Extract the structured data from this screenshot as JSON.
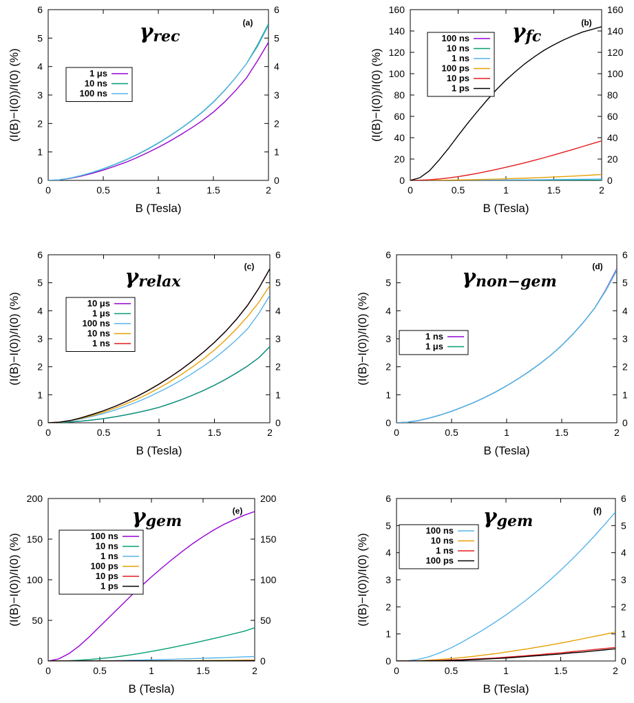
{
  "chart_data": [
    {
      "type": "line",
      "panel_label": "(a)",
      "title": "γrec",
      "title_greek": "γ",
      "title_sub": "rec",
      "xlabel": "B (Tesla)",
      "ylabel": "(I(B)−I(0))/I(0) (%)",
      "xlim": [
        0,
        2
      ],
      "ylim": [
        0,
        6
      ],
      "xticks": [
        "0",
        "0.5",
        "1",
        "1.5",
        "2"
      ],
      "yticks": [
        "0",
        "1",
        "2",
        "3",
        "4",
        "5",
        "6"
      ],
      "grid": false,
      "legend_position": "left",
      "x": [
        0,
        0.1,
        0.2,
        0.3,
        0.4,
        0.5,
        0.6,
        0.7,
        0.8,
        0.9,
        1.0,
        1.1,
        1.2,
        1.3,
        1.4,
        1.5,
        1.6,
        1.7,
        1.8,
        1.9,
        2.0
      ],
      "series": [
        {
          "name": "1 μs",
          "color": "#9400d3",
          "values": [
            0,
            0.02,
            0.07,
            0.15,
            0.25,
            0.36,
            0.49,
            0.63,
            0.79,
            0.97,
            1.16,
            1.37,
            1.6,
            1.84,
            2.1,
            2.4,
            2.75,
            3.15,
            3.6,
            4.2,
            4.85
          ]
        },
        {
          "name": "10 ns",
          "color": "#009e73",
          "values": [
            0,
            0.02,
            0.08,
            0.17,
            0.28,
            0.4,
            0.55,
            0.71,
            0.89,
            1.09,
            1.31,
            1.55,
            1.81,
            2.09,
            2.4,
            2.75,
            3.15,
            3.6,
            4.1,
            4.75,
            5.5
          ]
        },
        {
          "name": "100 ns",
          "color": "#56b4e9",
          "values": [
            0,
            0.02,
            0.08,
            0.17,
            0.28,
            0.41,
            0.56,
            0.72,
            0.9,
            1.1,
            1.32,
            1.56,
            1.82,
            2.1,
            2.41,
            2.76,
            3.16,
            3.6,
            4.1,
            4.7,
            5.45
          ]
        }
      ]
    },
    {
      "type": "line",
      "panel_label": "(b)",
      "title": "γfc",
      "title_greek": "γ",
      "title_sub": "fc",
      "xlabel": "B (Tesla)",
      "ylabel": "(I(B)−I(0))/I(0) (%)",
      "xlim": [
        0,
        2
      ],
      "ylim": [
        0,
        160
      ],
      "xticks": [
        "0",
        "0.5",
        "1",
        "1.5",
        "2"
      ],
      "yticks": [
        "0",
        "20",
        "40",
        "60",
        "80",
        "100",
        "120",
        "140",
        "160"
      ],
      "grid": false,
      "legend_position": "top-left",
      "x": [
        0,
        0.1,
        0.2,
        0.3,
        0.4,
        0.5,
        0.6,
        0.7,
        0.8,
        0.9,
        1.0,
        1.1,
        1.2,
        1.3,
        1.4,
        1.5,
        1.6,
        1.7,
        1.8,
        1.9,
        2.0
      ],
      "series": [
        {
          "name": "100 ns",
          "color": "#9400d3",
          "values": [
            0,
            0,
            0,
            0,
            0,
            0,
            0,
            0,
            0,
            0,
            0,
            0,
            0,
            0,
            0,
            0,
            0,
            0,
            0,
            0,
            0
          ]
        },
        {
          "name": "10 ns",
          "color": "#009e73",
          "values": [
            0,
            0,
            0,
            0,
            0,
            0,
            0,
            0.1,
            0.1,
            0.1,
            0.1,
            0.1,
            0.1,
            0.2,
            0.2,
            0.2,
            0.2,
            0.2,
            0.2,
            0.2,
            0.2
          ]
        },
        {
          "name": "1 ns",
          "color": "#56b4e9",
          "values": [
            0,
            0,
            0,
            0.1,
            0.1,
            0.1,
            0.2,
            0.2,
            0.3,
            0.3,
            0.4,
            0.5,
            0.5,
            0.6,
            0.7,
            0.8,
            0.9,
            1.0,
            1.1,
            1.2,
            1.3
          ]
        },
        {
          "name": "100 ps",
          "color": "#e69f00",
          "values": [
            0,
            0,
            0.1,
            0.2,
            0.3,
            0.4,
            0.6,
            0.8,
            1.0,
            1.2,
            1.5,
            1.8,
            2.1,
            2.4,
            2.8,
            3.2,
            3.6,
            4.0,
            4.5,
            5.0,
            5.5
          ]
        },
        {
          "name": "10 ps",
          "color": "#e41a1c",
          "values": [
            0,
            0.2,
            0.6,
            1.3,
            2.3,
            3.5,
            5.0,
            6.6,
            8.4,
            10.3,
            12.3,
            14.4,
            16.6,
            18.9,
            21.3,
            23.8,
            26.4,
            29.0,
            31.7,
            34.4,
            37.0
          ]
        },
        {
          "name": "1 ps",
          "color": "#000000",
          "values": [
            0,
            2.5,
            9,
            19,
            30,
            42,
            53.5,
            64.5,
            75,
            85,
            94,
            102,
            109.5,
            116,
            122,
            127,
            131.5,
            135.5,
            139,
            141.5,
            144
          ]
        }
      ]
    },
    {
      "type": "line",
      "panel_label": "(c)",
      "title": "γrelax",
      "title_greek": "γ",
      "title_sub": "relax",
      "xlabel": "B (Tesla)",
      "ylabel": "(I(B)−I(0))/I(0) (%)",
      "xlim": [
        0,
        2
      ],
      "ylim": [
        0,
        6
      ],
      "xticks": [
        "0",
        "0.5",
        "1",
        "1.5",
        "2"
      ],
      "yticks": [
        "0",
        "1",
        "2",
        "3",
        "4",
        "5",
        "6"
      ],
      "grid": false,
      "legend_position": "left",
      "x": [
        0,
        0.1,
        0.2,
        0.3,
        0.4,
        0.5,
        0.6,
        0.7,
        0.8,
        0.9,
        1.0,
        1.1,
        1.2,
        1.3,
        1.4,
        1.5,
        1.6,
        1.7,
        1.8,
        1.9,
        2.0
      ],
      "series": [
        {
          "name": "10 μs",
          "color": "#9400d3",
          "values": [
            0,
            0.01,
            0.03,
            0.06,
            0.1,
            0.15,
            0.21,
            0.28,
            0.36,
            0.45,
            0.55,
            0.68,
            0.82,
            0.98,
            1.15,
            1.34,
            1.55,
            1.78,
            2.03,
            2.32,
            2.72
          ]
        },
        {
          "name": "1 μs",
          "color": "#009e73",
          "values": [
            0,
            0.01,
            0.03,
            0.06,
            0.1,
            0.15,
            0.21,
            0.28,
            0.36,
            0.45,
            0.55,
            0.68,
            0.82,
            0.98,
            1.15,
            1.34,
            1.55,
            1.78,
            2.03,
            2.32,
            2.72
          ]
        },
        {
          "name": "100 ns",
          "color": "#56b4e9",
          "values": [
            0,
            0.02,
            0.07,
            0.14,
            0.23,
            0.33,
            0.45,
            0.59,
            0.74,
            0.91,
            1.1,
            1.3,
            1.52,
            1.76,
            2.02,
            2.3,
            2.62,
            2.97,
            3.36,
            3.9,
            4.55
          ]
        },
        {
          "name": "10 ns",
          "color": "#e69f00",
          "values": [
            0,
            0.02,
            0.08,
            0.16,
            0.26,
            0.38,
            0.52,
            0.67,
            0.84,
            1.03,
            1.24,
            1.47,
            1.72,
            1.99,
            2.28,
            2.6,
            2.96,
            3.36,
            3.8,
            4.3,
            4.9
          ]
        },
        {
          "name": "1 ns",
          "color": "#e41a1c",
          "values": [
            0,
            0.02,
            0.08,
            0.18,
            0.3,
            0.43,
            0.58,
            0.75,
            0.94,
            1.15,
            1.38,
            1.63,
            1.9,
            2.2,
            2.52,
            2.87,
            3.26,
            3.7,
            4.2,
            4.8,
            5.5
          ]
        },
        {
          "name": "",
          "color": "#000000",
          "values": [
            0,
            0.02,
            0.08,
            0.18,
            0.3,
            0.43,
            0.58,
            0.75,
            0.94,
            1.15,
            1.38,
            1.63,
            1.9,
            2.2,
            2.52,
            2.87,
            3.26,
            3.7,
            4.2,
            4.8,
            5.5
          ]
        }
      ]
    },
    {
      "type": "line",
      "panel_label": "(d)",
      "title": "γnon−gem",
      "title_greek": "γ",
      "title_sub": "non−gem",
      "xlabel": "B (Tesla)",
      "ylabel": "(I(B)−I(0))/I(0) (%)",
      "xlim": [
        0,
        2
      ],
      "ylim": [
        0,
        6
      ],
      "xticks": [
        "0",
        "0.5",
        "1",
        "1.5",
        "2"
      ],
      "yticks": [
        "0",
        "1",
        "2",
        "3",
        "4",
        "5",
        "6"
      ],
      "grid": false,
      "legend_position": "left",
      "x": [
        0,
        0.1,
        0.2,
        0.3,
        0.4,
        0.5,
        0.6,
        0.7,
        0.8,
        0.9,
        1.0,
        1.1,
        1.2,
        1.3,
        1.4,
        1.5,
        1.6,
        1.7,
        1.8,
        1.9,
        2.0
      ],
      "series": [
        {
          "name": "1 ns",
          "color": "#9400d3",
          "values": [
            0,
            0.02,
            0.08,
            0.17,
            0.28,
            0.41,
            0.56,
            0.72,
            0.9,
            1.1,
            1.32,
            1.56,
            1.82,
            2.1,
            2.41,
            2.76,
            3.16,
            3.6,
            4.1,
            4.75,
            5.5
          ]
        },
        {
          "name": "1 μs",
          "color": "#009e73",
          "values": [
            0,
            0.02,
            0.08,
            0.17,
            0.28,
            0.41,
            0.56,
            0.72,
            0.9,
            1.1,
            1.32,
            1.56,
            1.82,
            2.1,
            2.41,
            2.76,
            3.16,
            3.6,
            4.1,
            4.72,
            5.45
          ]
        },
        {
          "name": "",
          "color": "#56b4e9",
          "values": [
            0,
            0.02,
            0.08,
            0.17,
            0.28,
            0.41,
            0.56,
            0.72,
            0.9,
            1.1,
            1.32,
            1.56,
            1.82,
            2.1,
            2.41,
            2.76,
            3.16,
            3.6,
            4.1,
            4.73,
            5.47
          ]
        }
      ]
    },
    {
      "type": "line",
      "panel_label": "(e)",
      "title": "γgem",
      "title_greek": "γ",
      "title_sub": "gem",
      "xlabel": "B (Tesla)",
      "ylabel": "(I(B)−I(0))/I(0) (%)",
      "xlim": [
        0,
        2
      ],
      "ylim": [
        0,
        200
      ],
      "xticks": [
        "0",
        "0.5",
        "1",
        "1.5",
        "2"
      ],
      "yticks": [
        "0",
        "50",
        "100",
        "150",
        "200"
      ],
      "grid": false,
      "legend_position": "left",
      "x": [
        0,
        0.1,
        0.2,
        0.3,
        0.4,
        0.5,
        0.6,
        0.7,
        0.8,
        0.9,
        1.0,
        1.1,
        1.2,
        1.3,
        1.4,
        1.5,
        1.6,
        1.7,
        1.8,
        1.9,
        2.0
      ],
      "series": [
        {
          "name": "100 ns",
          "color": "#9400d3",
          "values": [
            0,
            2.5,
            9,
            18.5,
            30,
            42.5,
            55,
            67.5,
            80,
            92,
            103.5,
            114.5,
            125,
            135,
            144.5,
            153,
            161,
            168,
            174,
            179.5,
            184
          ]
        },
        {
          "name": "10 ns",
          "color": "#009e73",
          "values": [
            0,
            0.1,
            0.4,
            1,
            1.8,
            2.9,
            4.2,
            5.8,
            7.6,
            9.6,
            11.8,
            14.1,
            16.6,
            19.2,
            21.9,
            24.7,
            27.6,
            30.6,
            33.6,
            36.7,
            41
          ]
        },
        {
          "name": "1 ns",
          "color": "#56b4e9",
          "values": [
            0,
            0,
            0.05,
            0.1,
            0.2,
            0.35,
            0.5,
            0.7,
            0.95,
            1.2,
            1.5,
            1.8,
            2.1,
            2.5,
            2.9,
            3.3,
            3.7,
            4.1,
            4.6,
            5.1,
            5.5
          ]
        },
        {
          "name": "100 ps",
          "color": "#e69f00",
          "values": [
            0,
            0,
            0,
            0,
            0,
            0.1,
            0.1,
            0.1,
            0.2,
            0.2,
            0.3,
            0.3,
            0.4,
            0.4,
            0.5,
            0.6,
            0.7,
            0.8,
            0.9,
            1.0,
            1.1
          ]
        },
        {
          "name": "10 ps",
          "color": "#e41a1c",
          "values": [
            0,
            0,
            0,
            0,
            0,
            0,
            0,
            0.1,
            0.1,
            0.1,
            0.1,
            0.1,
            0.2,
            0.2,
            0.2,
            0.3,
            0.3,
            0.3,
            0.4,
            0.4,
            0.5
          ]
        },
        {
          "name": "1 ps",
          "color": "#000000",
          "values": [
            0,
            0,
            0,
            0,
            0,
            0,
            0,
            0,
            0.1,
            0.1,
            0.1,
            0.1,
            0.1,
            0.2,
            0.2,
            0.2,
            0.3,
            0.3,
            0.3,
            0.4,
            0.4
          ]
        }
      ]
    },
    {
      "type": "line",
      "panel_label": "(f)",
      "title": "γgem",
      "title_greek": "γ",
      "title_sub": "gem",
      "xlabel": "B (Tesla)",
      "ylabel": "(I(B)−I(0))/I(0) (%)",
      "xlim": [
        0,
        2
      ],
      "ylim": [
        0,
        6
      ],
      "xticks": [
        "0",
        "0.5",
        "1",
        "1.5",
        "2"
      ],
      "yticks": [
        "0",
        "1",
        "2",
        "3",
        "4",
        "5",
        "6"
      ],
      "grid": false,
      "legend_position": "left",
      "x": [
        0,
        0.1,
        0.2,
        0.3,
        0.4,
        0.5,
        0.6,
        0.7,
        0.8,
        0.9,
        1.0,
        1.1,
        1.2,
        1.3,
        1.4,
        1.5,
        1.6,
        1.7,
        1.8,
        1.9,
        2.0
      ],
      "series": [
        {
          "name": "100 ns",
          "color": "#56b4e9",
          "values": [
            0,
            0.01,
            0.06,
            0.16,
            0.31,
            0.49,
            0.7,
            0.93,
            1.17,
            1.43,
            1.7,
            1.99,
            2.3,
            2.63,
            2.98,
            3.35,
            3.74,
            4.15,
            4.58,
            5.03,
            5.5
          ]
        },
        {
          "name": "10 ns",
          "color": "#e69f00",
          "values": [
            0,
            0,
            0.01,
            0.03,
            0.06,
            0.09,
            0.13,
            0.17,
            0.22,
            0.27,
            0.33,
            0.39,
            0.45,
            0.52,
            0.59,
            0.66,
            0.74,
            0.82,
            0.9,
            0.98,
            1.07
          ]
        },
        {
          "name": "1 ns",
          "color": "#e41a1c",
          "values": [
            0,
            0,
            0,
            0.01,
            0.02,
            0.04,
            0.05,
            0.07,
            0.09,
            0.11,
            0.14,
            0.17,
            0.2,
            0.23,
            0.27,
            0.3,
            0.34,
            0.38,
            0.42,
            0.46,
            0.5
          ]
        },
        {
          "name": "100 ps",
          "color": "#000000",
          "values": [
            0,
            0,
            0,
            0.01,
            0.01,
            0.02,
            0.03,
            0.05,
            0.07,
            0.09,
            0.11,
            0.14,
            0.17,
            0.2,
            0.23,
            0.26,
            0.3,
            0.33,
            0.37,
            0.41,
            0.45
          ]
        }
      ]
    }
  ]
}
